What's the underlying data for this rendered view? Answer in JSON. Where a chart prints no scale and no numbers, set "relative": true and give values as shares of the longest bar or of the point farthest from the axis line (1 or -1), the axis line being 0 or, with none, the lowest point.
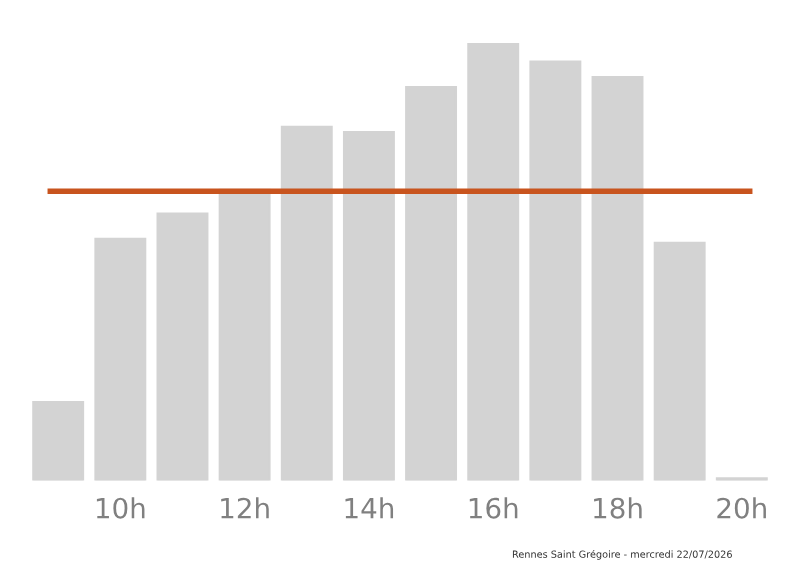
{
  "chart_data": {
    "type": "bar",
    "relative": true,
    "categories": [
      null,
      "10h",
      null,
      "12h",
      null,
      "14h",
      null,
      "16h",
      null,
      "18h",
      null,
      "20h"
    ],
    "values": [
      0.179,
      0.552,
      0.61,
      0.664,
      0.808,
      0.796,
      0.899,
      1,
      0.957,
      0.922,
      0.543,
      0.005
    ],
    "color": "#d3d3d3",
    "ref_lines": [
      {
        "axis": "y",
        "value": 0.661,
        "color": "#c8541e"
      }
    ],
    "annotations": [
      "Rennes Saint Grégoire - mercredi 22/07/2026"
    ],
    "grid": false,
    "legend": false
  }
}
